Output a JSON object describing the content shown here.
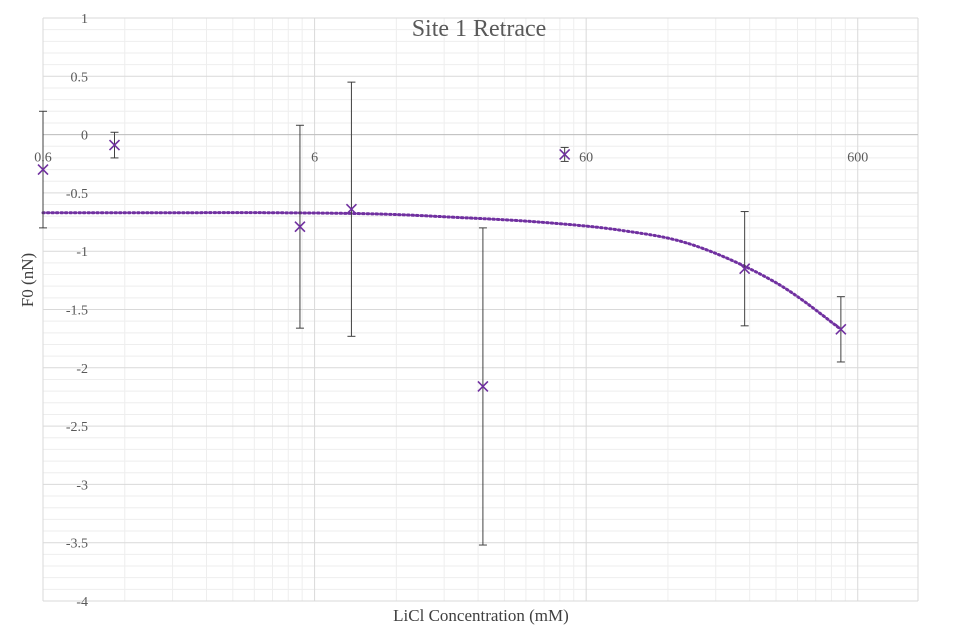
{
  "chart_data": {
    "type": "scatter",
    "title": "Site 1 Retrace",
    "xlabel": "LiCl Concentration (mM)",
    "ylabel": "F0 (nN)",
    "x_scale": "log",
    "xlim": [
      0.6,
      1000
    ],
    "ylim": [
      -4,
      1
    ],
    "x_ticks": [
      0.6,
      6,
      60,
      600
    ],
    "x_tick_labels": [
      "0.6",
      "6",
      "60",
      "600"
    ],
    "y_ticks": [
      1,
      0.5,
      0,
      -0.5,
      -1,
      -1.5,
      -2,
      -2.5,
      -3,
      -3.5,
      -4
    ],
    "y_tick_labels": [
      "1",
      "0.5",
      "0",
      "-0.5",
      "-1",
      "-1.5",
      "-2",
      "-2.5",
      "-3",
      "-3.5",
      "-4"
    ],
    "grid": true,
    "legend": "none",
    "colors": {
      "marker": "#7030a0",
      "trendline": "#7030a0",
      "error_bar": "#404040",
      "grid": "#d9d9d9"
    },
    "series": [
      {
        "marker": "x",
        "points": [
          {
            "x": 0.6,
            "y": -0.3,
            "err": 0.5
          },
          {
            "x": 1.1,
            "y": -0.09,
            "err": 0.11
          },
          {
            "x": 5.3,
            "y": -0.79,
            "err": 0.87
          },
          {
            "x": 8.2,
            "y": -0.64,
            "err": 1.09
          },
          {
            "x": 25,
            "y": -2.16,
            "err": 1.36
          },
          {
            "x": 50,
            "y": -0.17,
            "err": 0.06
          },
          {
            "x": 230,
            "y": -1.15,
            "err": 0.49
          },
          {
            "x": 520,
            "y": -1.67,
            "err": 0.28
          }
        ],
        "trendline": {
          "style": "dotted",
          "x": [
            0.6,
            2,
            4,
            10,
            20,
            40,
            80,
            150,
            300,
            520
          ],
          "y": [
            -0.67,
            -0.67,
            -0.67,
            -0.68,
            -0.71,
            -0.75,
            -0.82,
            -0.95,
            -1.27,
            -1.67
          ]
        }
      }
    ]
  }
}
